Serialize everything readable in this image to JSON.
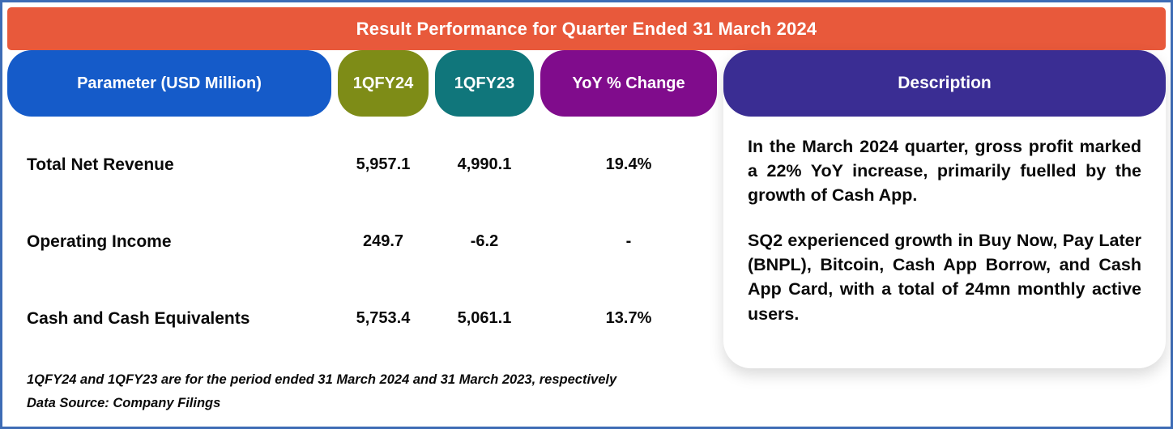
{
  "banner": {
    "title": "Result Performance for Quarter Ended 31 March 2024"
  },
  "chart_data": {
    "type": "table",
    "title": "Result Performance for Quarter Ended 31 March 2024",
    "columns": [
      "Parameter (USD Million)",
      "1QFY24",
      "1QFY23",
      "YoY % Change"
    ],
    "rows": [
      {
        "parameter": "Total Net Revenue",
        "values": [
          "5,957.1",
          "4,990.1",
          "19.4%"
        ]
      },
      {
        "parameter": "Operating Income",
        "values": [
          "249.7",
          "-6.2",
          "-"
        ]
      },
      {
        "parameter": "Cash and Cash Equivalents",
        "values": [
          "5,753.4",
          "5,061.1",
          "13.7%"
        ]
      }
    ]
  },
  "description": {
    "header": "Description",
    "paragraphs": [
      "In the March 2024 quarter, gross profit marked a 22% YoY increase, primarily fuelled by the growth of Cash App.",
      "SQ2 experienced growth in Buy Now, Pay Later (BNPL), Bitcoin, Cash App Borrow, and Cash App Card, with a total of 24mn monthly active users."
    ]
  },
  "footnotes": [
    "1QFY24 and 1QFY23 are for the period ended 31 March 2024 and 31 March 2023, respectively",
    "Data Source: Company Filings"
  ],
  "colors": {
    "banner": "#E8593B",
    "parameter_header": "#155BC9",
    "fy24_header": "#7E8C17",
    "fy23_header": "#10767B",
    "yoy_header": "#800C8C",
    "description_header": "#3A2D93",
    "frame_border": "#3E6CB5",
    "text": "#0A0A0A"
  }
}
